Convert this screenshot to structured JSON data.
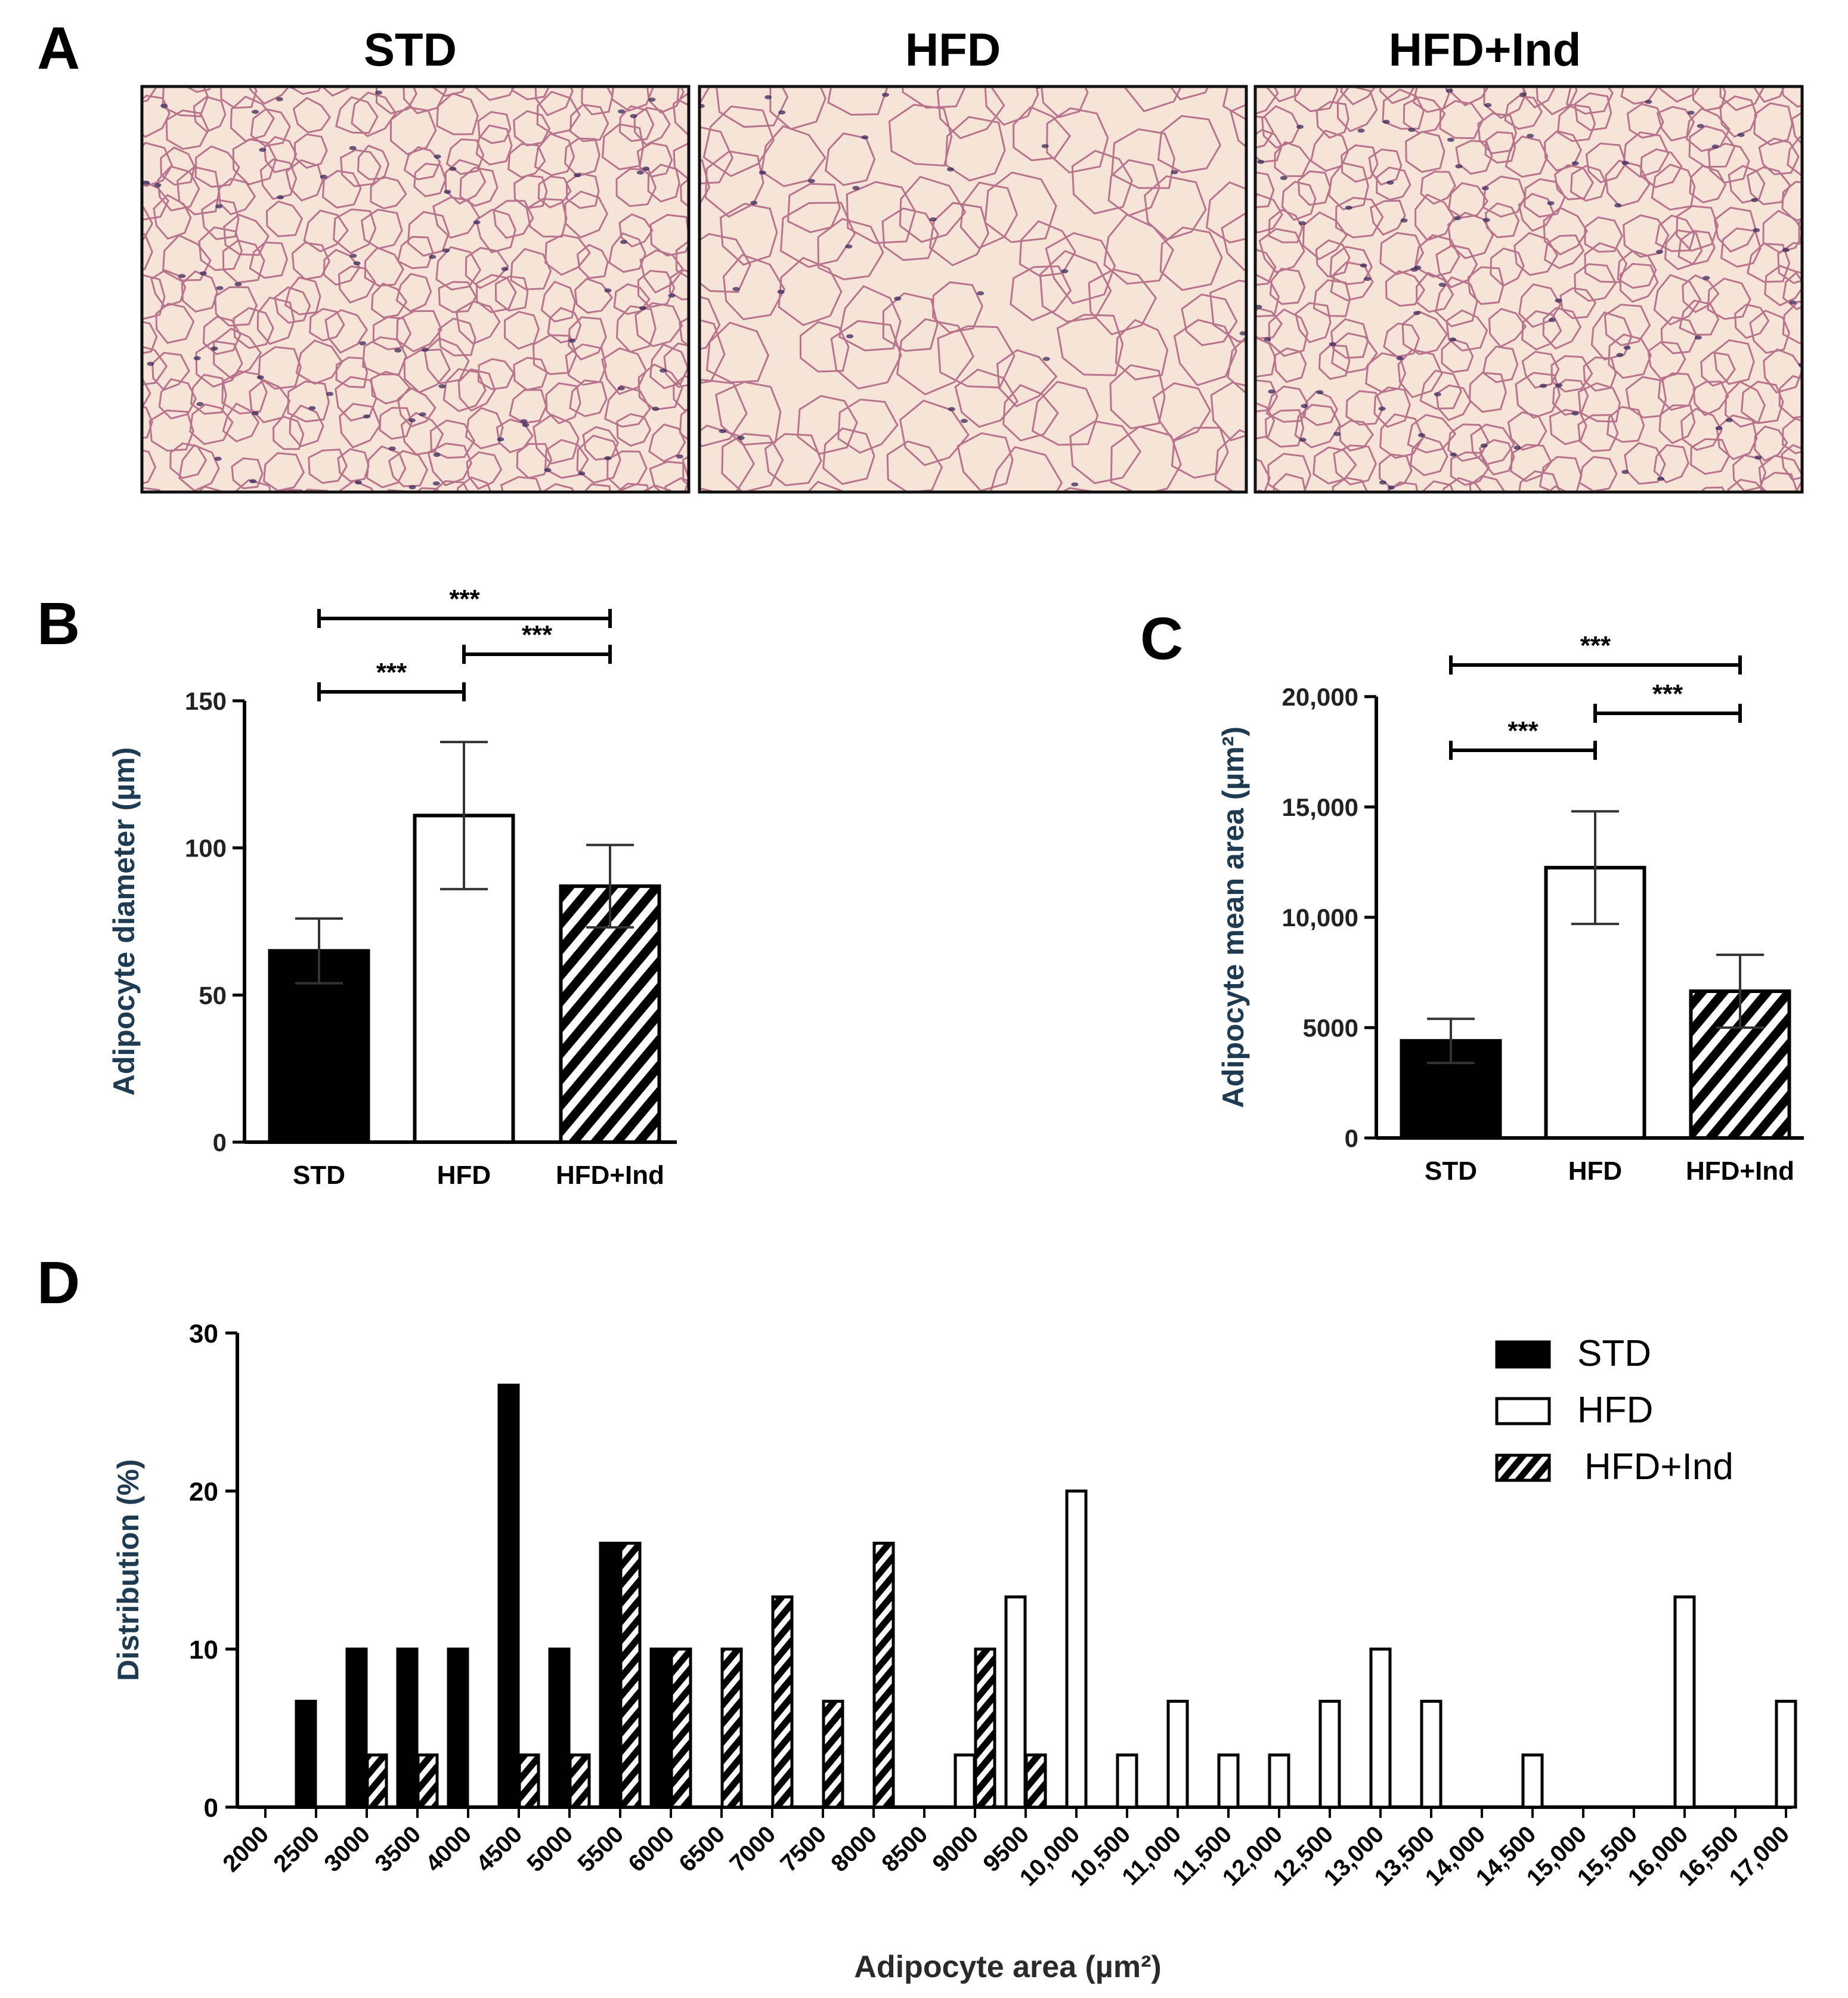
{
  "panels": {
    "A": {
      "letter": "A",
      "images": [
        {
          "title": "STD",
          "cell_size": "small"
        },
        {
          "title": "HFD",
          "cell_size": "large"
        },
        {
          "title": "HFD+Ind",
          "cell_size": "small"
        }
      ]
    },
    "B": {
      "letter": "B"
    },
    "C": {
      "letter": "C"
    },
    "D": {
      "letter": "D"
    }
  },
  "colors": {
    "STD": "#000000",
    "HFD": "#ffffff",
    "HFD+Ind": "hatched",
    "axis": "#000000",
    "ylabel": "#1f3b52",
    "tissue_bg": "#f7e4d8",
    "cell_border": "#b8748c",
    "nuclei": "#3a2a5e"
  },
  "chart_data": [
    {
      "id": "B",
      "type": "bar",
      "categories": [
        "STD",
        "HFD",
        "HFD+Ind"
      ],
      "values": [
        65,
        111,
        87
      ],
      "error": [
        11,
        25,
        14
      ],
      "fills": [
        "solid",
        "white",
        "hatched"
      ],
      "ylabel": "Adipocyte diameter (µm)",
      "ylim": [
        0,
        150
      ],
      "yticks": [
        0,
        50,
        100,
        150
      ],
      "ytick_labels": [
        "0",
        "50",
        "100",
        "150"
      ],
      "significance": [
        {
          "from": 0,
          "to": 1,
          "label": "***",
          "level": 1
        },
        {
          "from": 1,
          "to": 2,
          "label": "***",
          "level": 2
        },
        {
          "from": 0,
          "to": 2,
          "label": "***",
          "level": 3
        }
      ]
    },
    {
      "id": "C",
      "type": "bar",
      "categories": [
        "STD",
        "HFD",
        "HFD+Ind"
      ],
      "values": [
        4400,
        12250,
        6650
      ],
      "error": [
        1000,
        2550,
        1650
      ],
      "fills": [
        "solid",
        "white",
        "hatched"
      ],
      "ylabel": "Adipocyte mean area (µm²)",
      "ylim": [
        0,
        20000
      ],
      "yticks": [
        0,
        5000,
        10000,
        15000,
        20000
      ],
      "ytick_labels": [
        "0",
        "5000",
        "10,000",
        "15,000",
        "20,000"
      ],
      "significance": [
        {
          "from": 0,
          "to": 1,
          "label": "***",
          "level": 1
        },
        {
          "from": 1,
          "to": 2,
          "label": "***",
          "level": 2
        },
        {
          "from": 0,
          "to": 2,
          "label": "***",
          "level": 3
        }
      ]
    },
    {
      "id": "D",
      "type": "bar",
      "xlabel": "Adipocyte area (µm²)",
      "ylabel": "Distribution (%)",
      "ylim": [
        0,
        30
      ],
      "yticks": [
        0,
        10,
        20,
        30
      ],
      "ytick_labels": [
        "0",
        "10",
        "20",
        "30"
      ],
      "categories": [
        "2000",
        "2500",
        "3000",
        "3500",
        "4000",
        "4500",
        "5000",
        "5500",
        "6000",
        "6500",
        "7000",
        "7500",
        "8000",
        "8500",
        "9000",
        "9500",
        "10,000",
        "10,500",
        "11,000",
        "11,500",
        "12,000",
        "12,500",
        "13,000",
        "13,500",
        "14,000",
        "14,500",
        "15,000",
        "15,500",
        "16,000",
        "16,500",
        "17,000"
      ],
      "legend": {
        "position": "top-right",
        "entries": [
          "STD",
          "HFD",
          "HFD+Ind"
        ]
      },
      "series": [
        {
          "name": "STD",
          "fill": "solid",
          "points": [
            {
              "x": 2500,
              "y": 6.7
            },
            {
              "x": 3000,
              "y": 10
            },
            {
              "x": 3500,
              "y": 10
            },
            {
              "x": 4000,
              "y": 10
            },
            {
              "x": 4500,
              "y": 26.7
            },
            {
              "x": 5000,
              "y": 10
            },
            {
              "x": 5500,
              "y": 16.7
            },
            {
              "x": 6000,
              "y": 10
            }
          ]
        },
        {
          "name": "HFD+Ind",
          "fill": "hatched",
          "points": [
            {
              "x": 3000,
              "y": 3.3
            },
            {
              "x": 3500,
              "y": 3.3
            },
            {
              "x": 4500,
              "y": 3.3
            },
            {
              "x": 5000,
              "y": 3.3
            },
            {
              "x": 5500,
              "y": 16.7
            },
            {
              "x": 6000,
              "y": 10
            },
            {
              "x": 6500,
              "y": 10
            },
            {
              "x": 7000,
              "y": 13.3
            },
            {
              "x": 7500,
              "y": 6.7
            },
            {
              "x": 8000,
              "y": 16.7
            },
            {
              "x": 9000,
              "y": 10
            },
            {
              "x": 9500,
              "y": 3.3
            }
          ]
        },
        {
          "name": "HFD",
          "fill": "white",
          "points": [
            {
              "x": 9000,
              "y": 3.3
            },
            {
              "x": 9500,
              "y": 13.3
            },
            {
              "x": 10000,
              "y": 20
            },
            {
              "x": 10500,
              "y": 3.3
            },
            {
              "x": 11000,
              "y": 6.7
            },
            {
              "x": 11500,
              "y": 3.3
            },
            {
              "x": 12000,
              "y": 3.3
            },
            {
              "x": 12500,
              "y": 6.7
            },
            {
              "x": 13000,
              "y": 10
            },
            {
              "x": 13500,
              "y": 6.7
            },
            {
              "x": 14500,
              "y": 3.3
            },
            {
              "x": 16000,
              "y": 13.3
            },
            {
              "x": 17000,
              "y": 6.7
            }
          ]
        }
      ]
    }
  ]
}
